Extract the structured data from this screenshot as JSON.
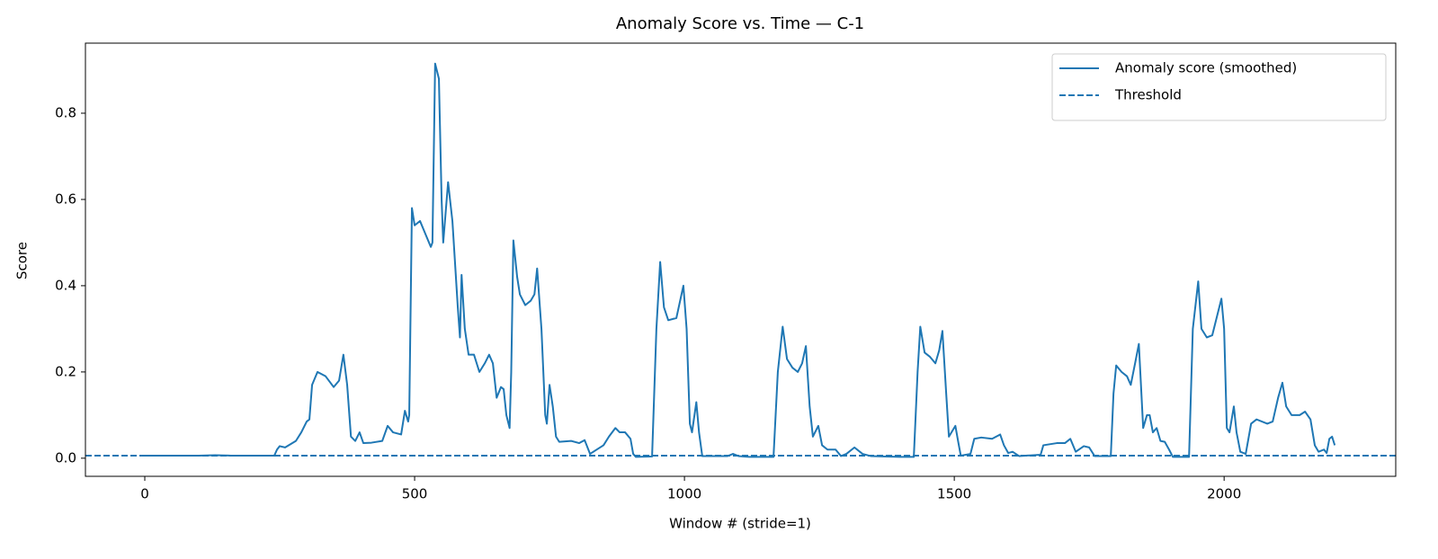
{
  "chart_data": {
    "type": "line",
    "title": "Anomaly Score vs. Time — C-1",
    "x_label": "Window # (stride=1)",
    "y_label": "Score",
    "x": [
      0,
      50,
      100,
      130,
      160,
      200,
      240,
      245,
      250,
      260,
      280,
      290,
      300,
      305,
      310,
      320,
      335,
      350,
      360,
      368,
      375,
      382,
      390,
      398,
      405,
      420,
      440,
      450,
      460,
      475,
      482,
      488,
      490,
      495,
      500,
      510,
      520,
      530,
      533,
      538,
      545,
      550,
      553,
      562,
      570,
      580,
      584,
      587,
      593,
      600,
      610,
      620,
      630,
      638,
      645,
      652,
      660,
      665,
      670,
      676,
      679,
      683,
      690,
      695,
      705,
      715,
      722,
      727,
      735,
      742,
      745,
      750,
      756,
      762,
      768,
      790,
      805,
      815,
      825,
      835,
      850,
      860,
      872,
      880,
      890,
      900,
      905,
      910,
      940,
      948,
      955,
      962,
      970,
      985,
      998,
      1004,
      1010,
      1014,
      1022,
      1027,
      1033,
      1080,
      1090,
      1100,
      1120,
      1165,
      1173,
      1182,
      1190,
      1200,
      1210,
      1218,
      1225,
      1232,
      1238,
      1248,
      1255,
      1265,
      1280,
      1290,
      1300,
      1315,
      1330,
      1345,
      1400,
      1425,
      1432,
      1437,
      1445,
      1455,
      1465,
      1472,
      1478,
      1485,
      1490,
      1502,
      1507,
      1512,
      1530,
      1537,
      1550,
      1570,
      1585,
      1592,
      1600,
      1608,
      1620,
      1660,
      1665,
      1690,
      1705,
      1715,
      1725,
      1740,
      1750,
      1760,
      1790,
      1795,
      1800,
      1810,
      1820,
      1827,
      1835,
      1842,
      1850,
      1857,
      1862,
      1868,
      1875,
      1882,
      1890,
      1898,
      1905,
      1935,
      1942,
      1952,
      1958,
      1968,
      1978,
      1995,
      2000,
      2005,
      2010,
      2018,
      2023,
      2030,
      2040,
      2050,
      2060,
      2080,
      2090,
      2100,
      2108,
      2115,
      2125,
      2140,
      2150,
      2160,
      2168,
      2175,
      2185,
      2190,
      2195,
      2200,
      2205
    ],
    "series": [
      {
        "name": "Anomaly score (smoothed)",
        "color": "#1f77b4",
        "values": [
          0.006,
          0.006,
          0.006,
          0.007,
          0.006,
          0.006,
          0.006,
          0.02,
          0.028,
          0.025,
          0.04,
          0.06,
          0.085,
          0.09,
          0.17,
          0.2,
          0.19,
          0.165,
          0.18,
          0.24,
          0.17,
          0.05,
          0.04,
          0.06,
          0.035,
          0.036,
          0.04,
          0.075,
          0.06,
          0.055,
          0.11,
          0.085,
          0.1,
          0.58,
          0.54,
          0.55,
          0.52,
          0.49,
          0.5,
          0.915,
          0.88,
          0.6,
          0.5,
          0.64,
          0.55,
          0.35,
          0.28,
          0.425,
          0.3,
          0.24,
          0.24,
          0.2,
          0.22,
          0.24,
          0.22,
          0.14,
          0.165,
          0.16,
          0.1,
          0.07,
          0.2,
          0.505,
          0.42,
          0.38,
          0.355,
          0.365,
          0.38,
          0.44,
          0.3,
          0.1,
          0.08,
          0.17,
          0.12,
          0.05,
          0.038,
          0.04,
          0.035,
          0.042,
          0.01,
          0.018,
          0.03,
          0.05,
          0.07,
          0.06,
          0.06,
          0.045,
          0.01,
          0.003,
          0.004,
          0.3,
          0.455,
          0.35,
          0.32,
          0.325,
          0.4,
          0.3,
          0.08,
          0.06,
          0.13,
          0.06,
          0.005,
          0.005,
          0.01,
          0.005,
          0.003,
          0.003,
          0.2,
          0.305,
          0.23,
          0.21,
          0.2,
          0.22,
          0.26,
          0.12,
          0.05,
          0.075,
          0.03,
          0.02,
          0.02,
          0.005,
          0.01,
          0.025,
          0.01,
          0.005,
          0.003,
          0.003,
          0.2,
          0.305,
          0.245,
          0.235,
          0.22,
          0.25,
          0.295,
          0.15,
          0.05,
          0.075,
          0.04,
          0.006,
          0.01,
          0.045,
          0.048,
          0.045,
          0.055,
          0.03,
          0.012,
          0.015,
          0.005,
          0.008,
          0.03,
          0.035,
          0.035,
          0.045,
          0.015,
          0.028,
          0.025,
          0.005,
          0.005,
          0.15,
          0.215,
          0.2,
          0.19,
          0.17,
          0.22,
          0.265,
          0.07,
          0.1,
          0.1,
          0.06,
          0.07,
          0.04,
          0.038,
          0.02,
          0.003,
          0.003,
          0.3,
          0.41,
          0.3,
          0.28,
          0.285,
          0.37,
          0.3,
          0.07,
          0.06,
          0.12,
          0.06,
          0.015,
          0.01,
          0.08,
          0.09,
          0.08,
          0.085,
          0.14,
          0.175,
          0.12,
          0.1,
          0.1,
          0.108,
          0.09,
          0.03,
          0.015,
          0.02,
          0.012,
          0.045,
          0.05,
          0.03
        ]
      }
    ],
    "threshold": {
      "name": "Threshold",
      "value": 0.006,
      "color": "#1f77b4",
      "linestyle": "dashed"
    },
    "xlim": [
      -110,
      2318
    ],
    "ylim": [
      -0.042,
      0.9625
    ],
    "xticks": [
      0,
      500,
      1000,
      1500,
      2000
    ],
    "yticks": [
      {
        "value": 0,
        "label": "0.0"
      },
      0.2,
      0.4,
      0.6,
      0.8
    ],
    "legend": "upper right",
    "grid": false
  }
}
